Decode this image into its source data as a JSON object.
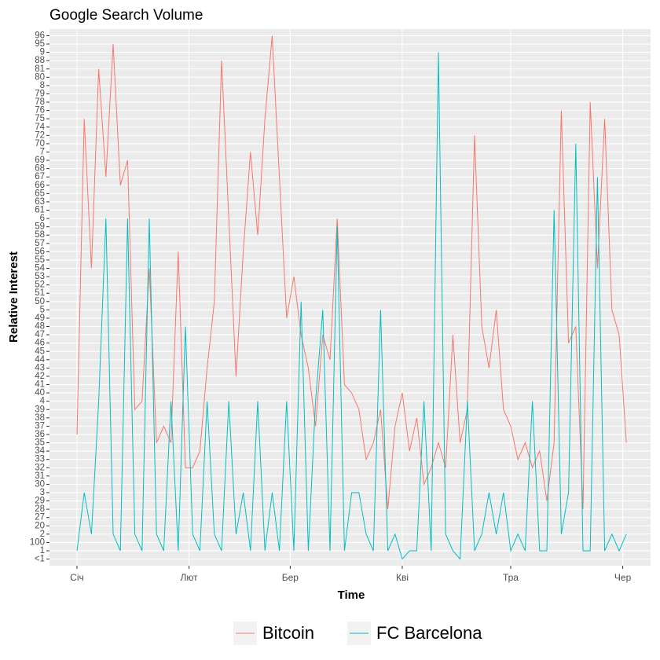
{
  "chart_data": {
    "type": "line",
    "title": "Google Search Volume",
    "xlabel": "Time",
    "ylabel": "Relative Interest",
    "x": [
      0,
      2,
      4,
      6,
      8,
      10,
      12,
      14,
      16,
      18,
      20,
      22,
      24,
      26,
      28,
      30,
      32,
      34,
      36,
      38,
      40,
      42,
      44,
      46,
      48,
      50,
      52,
      54,
      56,
      58,
      60,
      62,
      64,
      66,
      68,
      70,
      72,
      74,
      76,
      78,
      80,
      82,
      84,
      86,
      88,
      90,
      92,
      94,
      96,
      98,
      100,
      102,
      104,
      106,
      108,
      110,
      112,
      114,
      116,
      118,
      120,
      122,
      124,
      126,
      128,
      130,
      132,
      134,
      136,
      138,
      140,
      142,
      144,
      146,
      148,
      150,
      152
    ],
    "series": [
      {
        "name": "Bitcoin",
        "color": "#f8766d",
        "values": [
          16,
          54,
          36,
          60,
          47,
          63,
          46,
          49,
          19,
          20,
          36,
          15,
          17,
          15,
          38,
          12,
          12,
          14,
          24,
          32,
          61,
          42,
          23,
          38,
          50,
          40,
          54,
          64,
          47,
          30,
          35,
          28,
          24,
          17,
          28,
          25,
          42,
          22,
          21,
          19,
          13,
          15,
          19,
          7,
          17,
          21,
          14,
          18,
          10,
          12,
          15,
          12,
          28,
          15,
          19,
          52,
          29,
          24,
          31,
          19,
          17,
          13,
          15,
          12,
          14,
          8,
          15,
          55,
          27,
          29,
          7,
          56,
          36,
          54,
          31,
          28,
          15
        ]
      },
      {
        "name": "FC Barcelona",
        "color": "#00bfc4",
        "values": [
          2,
          9,
          4,
          20,
          42,
          4,
          2,
          42,
          4,
          2,
          42,
          4,
          2,
          20,
          2,
          29,
          4,
          2,
          20,
          4,
          2,
          20,
          4,
          9,
          2,
          20,
          2,
          9,
          2,
          20,
          2,
          32,
          2,
          20,
          31,
          2,
          41,
          2,
          9,
          9,
          4,
          2,
          31,
          2,
          4,
          1,
          2,
          2,
          20,
          2,
          62,
          4,
          2,
          1,
          20,
          2,
          4,
          9,
          4,
          9,
          2,
          4,
          2,
          20,
          2,
          2,
          43,
          4,
          9,
          51,
          2,
          2,
          47,
          2,
          4,
          2,
          4
        ]
      }
    ],
    "xlim": [
      -7.6,
      158.7
    ],
    "xticks": [
      {
        "value": 0,
        "label": "Січ"
      },
      {
        "value": 31,
        "label": "Лют"
      },
      {
        "value": 59,
        "label": "Бер"
      },
      {
        "value": 90,
        "label": "Кві"
      },
      {
        "value": 120,
        "label": "Тра"
      },
      {
        "value": 151,
        "label": "Чер"
      }
    ],
    "ylim": [
      0.2,
      64.8
    ],
    "yticks": [
      {
        "value": 1,
        "label": "<1"
      },
      {
        "value": 2,
        "label": "1"
      },
      {
        "value": 3,
        "label": "100"
      },
      {
        "value": 4,
        "label": "2"
      },
      {
        "value": 5,
        "label": "20"
      },
      {
        "value": 6,
        "label": "27"
      },
      {
        "value": 7,
        "label": "28"
      },
      {
        "value": 8,
        "label": "29"
      },
      {
        "value": 9,
        "label": "3"
      },
      {
        "value": 10,
        "label": "30"
      },
      {
        "value": 11,
        "label": "31"
      },
      {
        "value": 12,
        "label": "32"
      },
      {
        "value": 13,
        "label": "33"
      },
      {
        "value": 14,
        "label": "34"
      },
      {
        "value": 15,
        "label": "35"
      },
      {
        "value": 16,
        "label": "36"
      },
      {
        "value": 17,
        "label": "37"
      },
      {
        "value": 18,
        "label": "38"
      },
      {
        "value": 19,
        "label": "39"
      },
      {
        "value": 20,
        "label": "4"
      },
      {
        "value": 21,
        "label": "40"
      },
      {
        "value": 22,
        "label": "41"
      },
      {
        "value": 23,
        "label": "42"
      },
      {
        "value": 24,
        "label": "43"
      },
      {
        "value": 25,
        "label": "44"
      },
      {
        "value": 26,
        "label": "45"
      },
      {
        "value": 27,
        "label": "46"
      },
      {
        "value": 28,
        "label": "47"
      },
      {
        "value": 29,
        "label": "48"
      },
      {
        "value": 30,
        "label": "49"
      },
      {
        "value": 31,
        "label": "5"
      },
      {
        "value": 32,
        "label": "50"
      },
      {
        "value": 33,
        "label": "51"
      },
      {
        "value": 34,
        "label": "52"
      },
      {
        "value": 35,
        "label": "53"
      },
      {
        "value": 36,
        "label": "54"
      },
      {
        "value": 37,
        "label": "55"
      },
      {
        "value": 38,
        "label": "56"
      },
      {
        "value": 39,
        "label": "57"
      },
      {
        "value": 40,
        "label": "58"
      },
      {
        "value": 41,
        "label": "59"
      },
      {
        "value": 42,
        "label": "6"
      },
      {
        "value": 43,
        "label": "61"
      },
      {
        "value": 44,
        "label": "63"
      },
      {
        "value": 45,
        "label": "65"
      },
      {
        "value": 46,
        "label": "66"
      },
      {
        "value": 47,
        "label": "67"
      },
      {
        "value": 48,
        "label": "68"
      },
      {
        "value": 49,
        "label": "69"
      },
      {
        "value": 50,
        "label": "7"
      },
      {
        "value": 51,
        "label": "70"
      },
      {
        "value": 52,
        "label": "72"
      },
      {
        "value": 53,
        "label": "74"
      },
      {
        "value": 54,
        "label": "75"
      },
      {
        "value": 55,
        "label": "76"
      },
      {
        "value": 56,
        "label": "78"
      },
      {
        "value": 57,
        "label": "79"
      },
      {
        "value": 58,
        "label": "8"
      },
      {
        "value": 59,
        "label": "80"
      },
      {
        "value": 60,
        "label": "81"
      },
      {
        "value": 61,
        "label": "88"
      },
      {
        "value": 62,
        "label": "9"
      },
      {
        "value": 63,
        "label": "95"
      },
      {
        "value": 64,
        "label": "96"
      }
    ],
    "grid": true,
    "legend": "bottom"
  }
}
